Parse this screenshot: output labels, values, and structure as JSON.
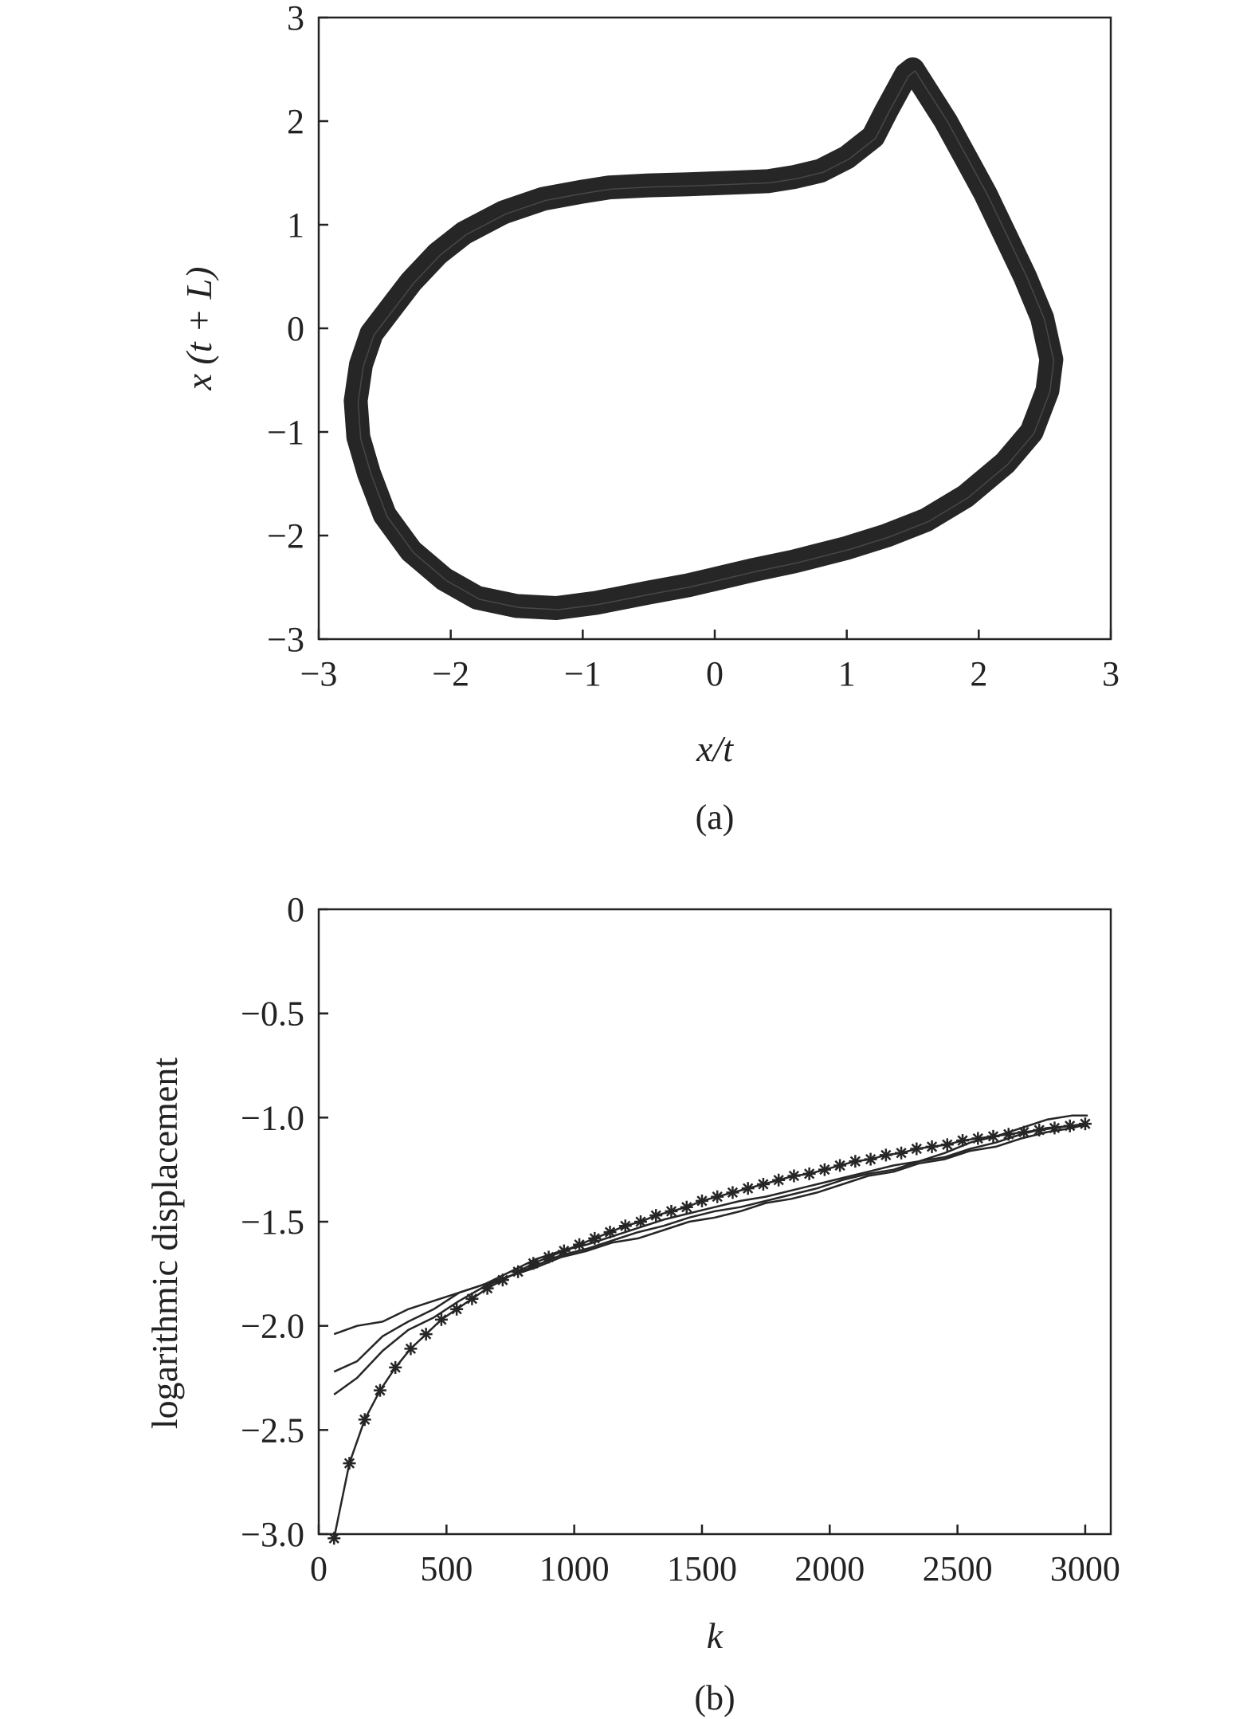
{
  "chart_data": [
    {
      "type": "scatter",
      "panel_label": "(a)",
      "xlabel": "x/t",
      "ylabel": "x (t + L)",
      "xlim": [
        -3,
        3
      ],
      "ylim": [
        -3,
        3
      ],
      "xticks": [
        -3,
        -2,
        -1,
        0,
        1,
        2,
        3
      ],
      "yticks": [
        -3,
        -2,
        -1,
        0,
        1,
        2,
        3
      ],
      "xtick_labels": [
        "−3",
        "−2",
        "−1",
        "0",
        "1",
        "2",
        "3"
      ],
      "ytick_labels": [
        "−3",
        "−2",
        "−1",
        "0",
        "1",
        "2",
        "3"
      ],
      "grid": false,
      "color": "#262626",
      "trajectory": {
        "x": [
          1.45,
          1.3,
          1.2,
          1.0,
          0.8,
          0.6,
          0.4,
          0.2,
          0.0,
          -0.2,
          -0.5,
          -0.8,
          -1.0,
          -1.3,
          -1.6,
          -1.9,
          -2.1,
          -2.3,
          -2.45,
          -2.6,
          -2.68,
          -2.72,
          -2.7,
          -2.62,
          -2.5,
          -2.3,
          -2.05,
          -1.8,
          -1.5,
          -1.2,
          -0.9,
          -0.5,
          -0.2,
          0.0,
          0.3,
          0.6,
          1.0,
          1.3,
          1.6,
          1.9,
          2.2,
          2.4,
          2.52,
          2.55,
          2.48,
          2.35,
          2.2,
          2.05,
          1.9,
          1.75,
          1.6,
          1.5,
          1.45
        ],
        "y": [
          2.45,
          2.1,
          1.85,
          1.65,
          1.52,
          1.46,
          1.42,
          1.41,
          1.4,
          1.39,
          1.38,
          1.36,
          1.32,
          1.25,
          1.12,
          0.92,
          0.72,
          0.45,
          0.2,
          -0.05,
          -0.35,
          -0.7,
          -1.05,
          -1.4,
          -1.8,
          -2.15,
          -2.42,
          -2.6,
          -2.68,
          -2.7,
          -2.65,
          -2.55,
          -2.48,
          -2.42,
          -2.33,
          -2.25,
          -2.12,
          -2.0,
          -1.85,
          -1.62,
          -1.3,
          -1.0,
          -0.6,
          -0.3,
          0.1,
          0.5,
          0.9,
          1.3,
          1.65,
          2.0,
          2.3,
          2.5,
          2.45
        ]
      }
    },
    {
      "type": "line",
      "panel_label": "(b)",
      "xlabel": "k",
      "ylabel": "logarithmic displacement",
      "xlim": [
        0,
        3100
      ],
      "ylim": [
        -3.0,
        0
      ],
      "xticks": [
        0,
        500,
        1000,
        1500,
        2000,
        2500,
        3000
      ],
      "yticks": [
        0,
        -0.5,
        -1.0,
        -1.5,
        -2.0,
        -2.5,
        -3.0
      ],
      "xtick_labels": [
        "0",
        "500",
        "1000",
        "1500",
        "2000",
        "2500",
        "3000"
      ],
      "ytick_labels": [
        "0",
        "−0.5",
        "−1.0",
        "−1.5",
        "−2.0",
        "−2.5",
        "−3.0"
      ],
      "grid": false,
      "color": "#262626",
      "series": [
        {
          "marker": "asterisk",
          "x": [
            60,
            120,
            180,
            240,
            300,
            360,
            420,
            480,
            540,
            600,
            660,
            720,
            780,
            840,
            900,
            960,
            1020,
            1080,
            1140,
            1200,
            1260,
            1320,
            1380,
            1440,
            1500,
            1560,
            1620,
            1680,
            1740,
            1800,
            1860,
            1920,
            1980,
            2040,
            2100,
            2160,
            2220,
            2280,
            2340,
            2400,
            2460,
            2520,
            2580,
            2640,
            2700,
            2760,
            2820,
            2880,
            2940,
            3000
          ],
          "values": [
            -3.02,
            -2.66,
            -2.45,
            -2.31,
            -2.2,
            -2.11,
            -2.04,
            -1.97,
            -1.92,
            -1.87,
            -1.82,
            -1.78,
            -1.74,
            -1.7,
            -1.67,
            -1.64,
            -1.61,
            -1.58,
            -1.55,
            -1.52,
            -1.5,
            -1.47,
            -1.45,
            -1.43,
            -1.4,
            -1.38,
            -1.36,
            -1.34,
            -1.32,
            -1.3,
            -1.28,
            -1.27,
            -1.25,
            -1.23,
            -1.21,
            -1.2,
            -1.18,
            -1.17,
            -1.15,
            -1.14,
            -1.13,
            -1.11,
            -1.1,
            -1.09,
            -1.08,
            -1.07,
            -1.06,
            -1.05,
            -1.04,
            -1.03
          ]
        },
        {
          "marker": "none",
          "x": [
            60,
            150,
            250,
            350,
            450,
            550,
            650,
            750,
            850,
            950,
            1050,
            1150,
            1250,
            1350,
            1450,
            1550,
            1650,
            1750,
            1850,
            1950,
            2050,
            2150,
            2250,
            2350,
            2450,
            2550,
            2650,
            2750,
            2850,
            2950,
            3010
          ],
          "values": [
            -2.04,
            -2.0,
            -1.98,
            -1.92,
            -1.88,
            -1.84,
            -1.8,
            -1.74,
            -1.68,
            -1.64,
            -1.61,
            -1.57,
            -1.53,
            -1.49,
            -1.46,
            -1.43,
            -1.4,
            -1.38,
            -1.35,
            -1.32,
            -1.29,
            -1.26,
            -1.23,
            -1.21,
            -1.17,
            -1.12,
            -1.09,
            -1.05,
            -1.01,
            -0.99,
            -0.99
          ]
        },
        {
          "marker": "none",
          "x": [
            60,
            150,
            250,
            350,
            450,
            550,
            650,
            750,
            850,
            950,
            1050,
            1150,
            1250,
            1350,
            1450,
            1550,
            1650,
            1750,
            1850,
            1950,
            2050,
            2150,
            2250,
            2350,
            2450,
            2550,
            2650,
            2750,
            2850,
            2950,
            3010
          ],
          "values": [
            -2.22,
            -2.17,
            -2.05,
            -1.98,
            -1.92,
            -1.84,
            -1.8,
            -1.76,
            -1.71,
            -1.66,
            -1.63,
            -1.59,
            -1.55,
            -1.52,
            -1.48,
            -1.45,
            -1.43,
            -1.4,
            -1.37,
            -1.34,
            -1.3,
            -1.27,
            -1.25,
            -1.21,
            -1.19,
            -1.15,
            -1.12,
            -1.08,
            -1.05,
            -1.04,
            -1.04
          ]
        },
        {
          "marker": "none",
          "x": [
            60,
            150,
            250,
            350,
            450,
            550,
            650,
            750,
            850,
            950,
            1050,
            1150,
            1250,
            1350,
            1450,
            1550,
            1650,
            1750,
            1850,
            1950,
            2050,
            2150,
            2250,
            2350,
            2450,
            2550,
            2650,
            2750,
            2850,
            2950,
            3010
          ],
          "values": [
            -2.33,
            -2.25,
            -2.12,
            -2.02,
            -1.96,
            -1.88,
            -1.81,
            -1.76,
            -1.72,
            -1.67,
            -1.64,
            -1.6,
            -1.58,
            -1.54,
            -1.5,
            -1.48,
            -1.45,
            -1.41,
            -1.39,
            -1.36,
            -1.32,
            -1.28,
            -1.26,
            -1.22,
            -1.2,
            -1.16,
            -1.14,
            -1.1,
            -1.07,
            -1.05,
            -1.03
          ]
        }
      ]
    }
  ]
}
